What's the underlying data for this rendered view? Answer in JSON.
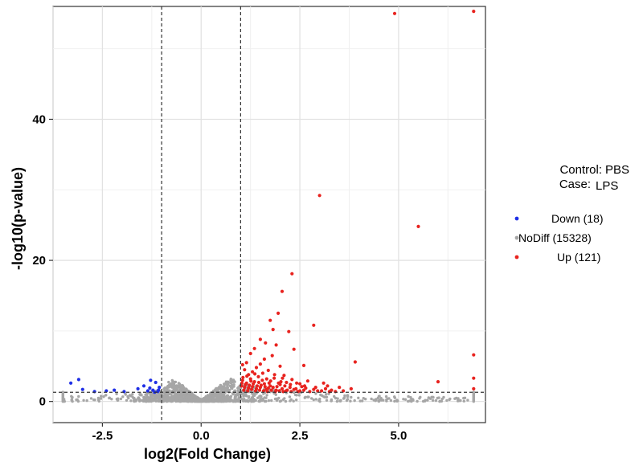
{
  "chart_data": {
    "type": "scatter",
    "subtype": "volcano",
    "xlabel": "log2(Fold Change)",
    "ylabel": "-log10(p-value)",
    "xlim": [
      -3.75,
      7.2
    ],
    "ylim": [
      -3,
      56
    ],
    "x_ticks": [
      -2.5,
      0.0,
      2.5,
      5.0
    ],
    "x_tick_labels": [
      "-2.5",
      "0.0",
      "2.5",
      "5.0"
    ],
    "y_ticks": [
      0,
      20,
      40
    ],
    "y_tick_labels": [
      "0",
      "20",
      "40"
    ],
    "grid": true,
    "thresholds": {
      "log2fc": [
        -1,
        1
      ],
      "neg_log10_p": 1.3
    },
    "info": {
      "control_label": "Control:",
      "control_value": "PBS",
      "case_label": "Case:",
      "case_value": "LPS"
    },
    "legend": [
      {
        "label": "Down (18)",
        "color": "#1f2fe6"
      },
      {
        "label": "NoDiff (15328)",
        "color": "#a6a6a6"
      },
      {
        "label": "Up (121)",
        "color": "#e8231f"
      }
    ],
    "series": [
      {
        "name": "Down",
        "color": "#1f2fe6",
        "points": [
          [
            -3.1,
            3.1
          ],
          [
            -3.0,
            1.7
          ],
          [
            -3.3,
            2.6
          ],
          [
            -2.7,
            1.4
          ],
          [
            -2.4,
            1.5
          ],
          [
            -2.2,
            1.6
          ],
          [
            -1.95,
            1.4
          ],
          [
            -1.6,
            1.8
          ],
          [
            -1.45,
            2.2
          ],
          [
            -1.35,
            1.5
          ],
          [
            -1.28,
            3.0
          ],
          [
            -1.22,
            1.6
          ],
          [
            -1.15,
            2.7
          ],
          [
            -1.1,
            1.4
          ],
          [
            -1.06,
            2.0
          ],
          [
            -1.3,
            1.9
          ],
          [
            -1.18,
            1.3
          ],
          [
            -1.08,
            1.6
          ]
        ]
      },
      {
        "name": "Up",
        "color": "#e8231f",
        "points": [
          [
            4.9,
            55
          ],
          [
            6.9,
            55.3
          ],
          [
            3.0,
            29.2
          ],
          [
            5.5,
            24.8
          ],
          [
            2.3,
            18.1
          ],
          [
            2.05,
            15.6
          ],
          [
            1.95,
            12.5
          ],
          [
            1.75,
            11.5
          ],
          [
            2.85,
            10.8
          ],
          [
            1.82,
            10.2
          ],
          [
            2.22,
            9.9
          ],
          [
            1.5,
            8.8
          ],
          [
            1.63,
            8.3
          ],
          [
            1.35,
            7.5
          ],
          [
            2.35,
            7.4
          ],
          [
            1.9,
            8.0
          ],
          [
            1.25,
            6.8
          ],
          [
            1.8,
            6.5
          ],
          [
            1.6,
            6.0
          ],
          [
            6.9,
            6.6
          ],
          [
            3.9,
            5.6
          ],
          [
            2.6,
            5.1
          ],
          [
            1.5,
            5.3
          ],
          [
            1.4,
            4.8
          ],
          [
            1.05,
            5.2
          ],
          [
            1.15,
            5.5
          ],
          [
            1.3,
            4.2
          ],
          [
            1.7,
            4.4
          ],
          [
            2.0,
            5.0
          ],
          [
            1.2,
            3.8
          ],
          [
            1.1,
            4.5
          ],
          [
            6.9,
            3.3
          ],
          [
            6.0,
            2.8
          ],
          [
            1.25,
            3.2
          ],
          [
            1.45,
            3.5
          ],
          [
            1.55,
            3.0
          ],
          [
            1.85,
            3.3
          ],
          [
            2.1,
            3.7
          ],
          [
            2.3,
            3.1
          ],
          [
            2.5,
            2.5
          ],
          [
            2.7,
            2.9
          ],
          [
            3.2,
            2.2
          ],
          [
            3.5,
            2.0
          ],
          [
            3.1,
            2.6
          ],
          [
            1.05,
            3.0
          ],
          [
            1.15,
            2.6
          ],
          [
            1.35,
            2.8
          ],
          [
            1.6,
            2.5
          ],
          [
            1.75,
            2.2
          ],
          [
            2.0,
            2.4
          ],
          [
            2.25,
            2.0
          ],
          [
            2.4,
            1.8
          ],
          [
            2.6,
            1.6
          ],
          [
            2.85,
            1.7
          ],
          [
            3.05,
            1.5
          ],
          [
            3.3,
            1.6
          ],
          [
            3.6,
            1.5
          ],
          [
            3.8,
            1.8
          ],
          [
            1.02,
            2.2
          ],
          [
            1.1,
            2.0
          ],
          [
            1.2,
            1.9
          ],
          [
            1.3,
            2.1
          ],
          [
            1.4,
            1.8
          ],
          [
            1.5,
            2.0
          ],
          [
            1.65,
            1.7
          ],
          [
            1.7,
            1.9
          ],
          [
            1.9,
            1.6
          ],
          [
            2.05,
            1.8
          ],
          [
            2.15,
            1.5
          ],
          [
            2.35,
            1.7
          ],
          [
            2.5,
            1.5
          ],
          [
            2.75,
            1.4
          ],
          [
            2.9,
            2.0
          ],
          [
            3.4,
            1.4
          ],
          [
            6.9,
            1.8
          ],
          [
            1.08,
            1.6
          ],
          [
            1.18,
            1.5
          ],
          [
            1.28,
            1.7
          ],
          [
            1.38,
            1.5
          ],
          [
            1.48,
            1.6
          ],
          [
            1.58,
            1.5
          ],
          [
            1.68,
            1.4
          ],
          [
            1.78,
            1.6
          ],
          [
            1.88,
            1.4
          ],
          [
            1.98,
            1.5
          ],
          [
            2.08,
            1.4
          ],
          [
            2.18,
            1.6
          ],
          [
            2.28,
            1.4
          ],
          [
            2.45,
            1.4
          ],
          [
            2.55,
            2.1
          ],
          [
            2.65,
            1.9
          ],
          [
            2.95,
            1.5
          ],
          [
            3.15,
            1.8
          ],
          [
            3.25,
            1.4
          ],
          [
            1.03,
            2.6
          ],
          [
            1.12,
            2.4
          ],
          [
            1.22,
            2.3
          ],
          [
            1.32,
            2.5
          ],
          [
            1.42,
            2.2
          ],
          [
            1.52,
            2.3
          ],
          [
            1.62,
            2.1
          ],
          [
            1.72,
            2.6
          ],
          [
            1.82,
            2.0
          ],
          [
            1.92,
            2.1
          ],
          [
            2.02,
            2.8
          ],
          [
            2.12,
            2.2
          ],
          [
            1.06,
            3.4
          ],
          [
            1.16,
            3.6
          ],
          [
            1.26,
            2.9
          ],
          [
            1.36,
            3.9
          ],
          [
            1.46,
            2.7
          ],
          [
            1.56,
            4.0
          ],
          [
            1.66,
            3.2
          ],
          [
            1.76,
            2.9
          ],
          [
            1.86,
            3.8
          ],
          [
            1.96,
            2.6
          ],
          [
            2.06,
            3.3
          ],
          [
            2.16,
            2.7
          ],
          [
            2.26,
            2.4
          ],
          [
            2.42,
            2.6
          ],
          [
            2.62,
            2.2
          ]
        ]
      }
    ],
    "nodiff_envelope": {
      "x": [
        -3.5,
        -3.0,
        -2.5,
        -2.0,
        -1.5,
        -1.0,
        -0.75,
        -0.5,
        -0.3,
        -0.15,
        0.0,
        0.15,
        0.3,
        0.5,
        0.75,
        0.9,
        1.0,
        1.5,
        2.0,
        2.5,
        3.0,
        3.5,
        4.0,
        4.5,
        5.0,
        5.5,
        6.0,
        6.5,
        6.9
      ],
      "y": [
        0.8,
        0.9,
        1.0,
        1.1,
        1.2,
        1.7,
        3.2,
        2.4,
        1.5,
        0.8,
        0.3,
        0.8,
        1.5,
        2.4,
        3.2,
        3.0,
        2.5,
        2.0,
        1.6,
        1.4,
        1.2,
        1.0,
        0.9,
        0.8,
        0.7,
        0.7,
        0.6,
        0.6,
        0.6
      ]
    }
  }
}
